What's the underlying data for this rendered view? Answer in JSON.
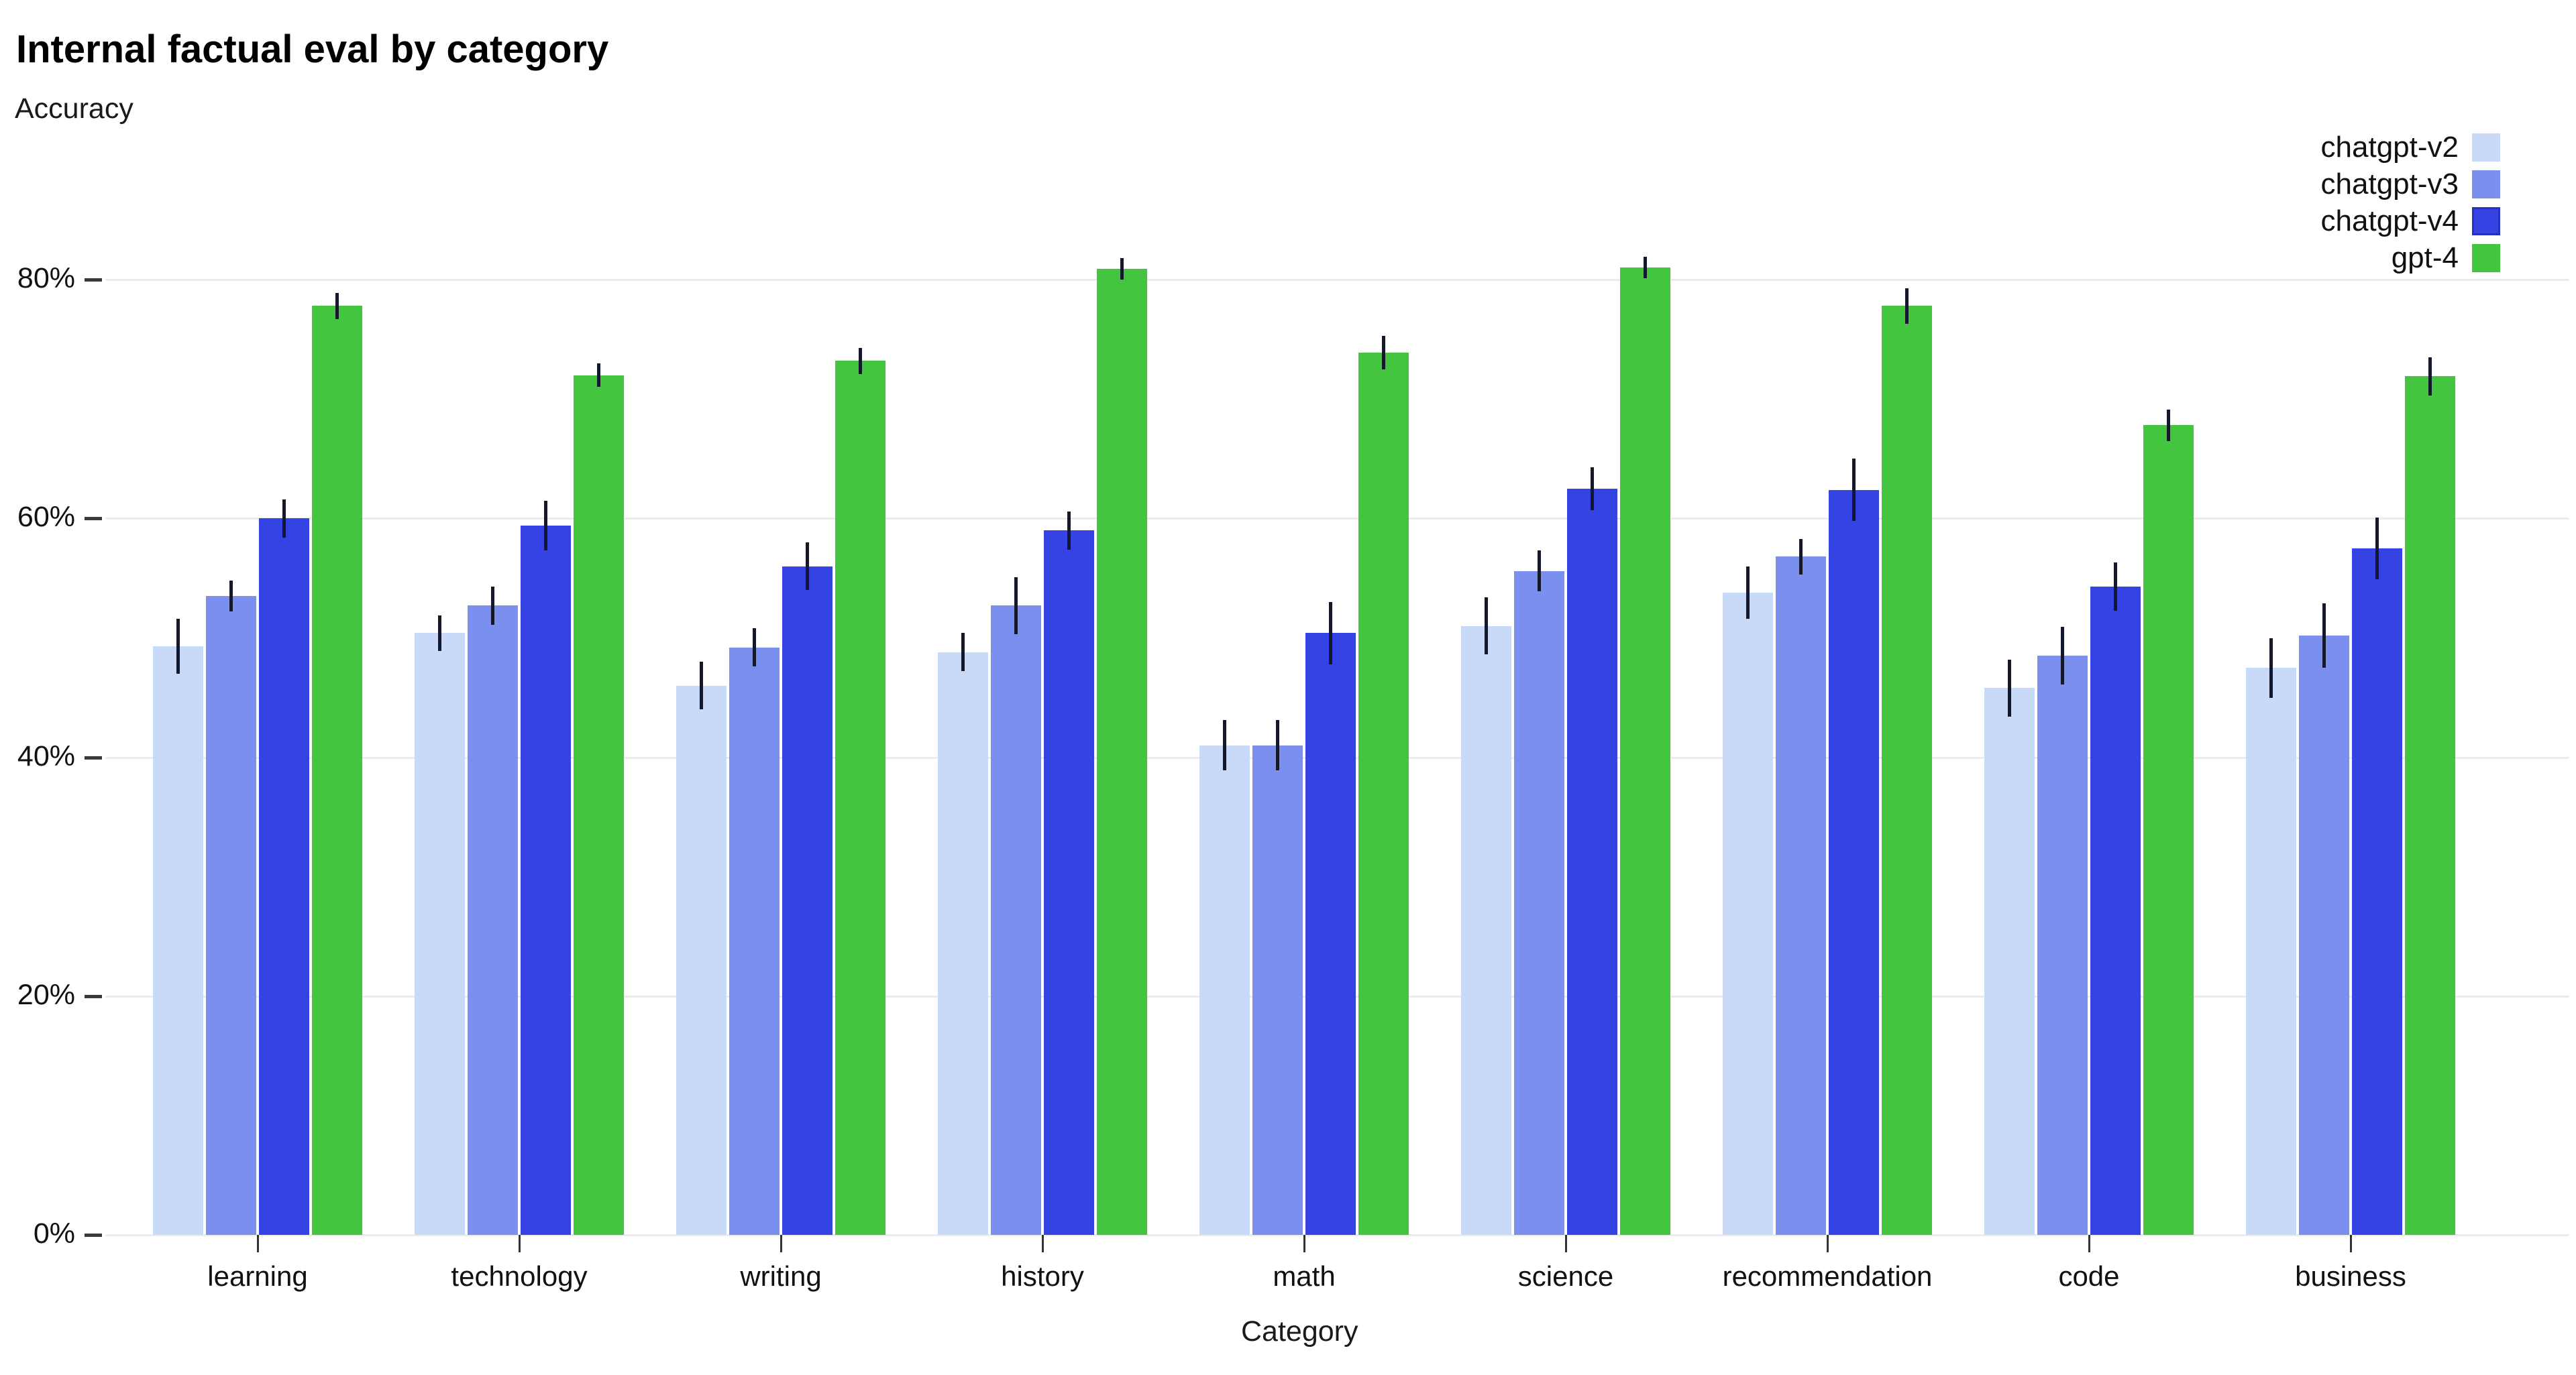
{
  "title": "Internal factual eval by category",
  "y_axis_title": "Accuracy",
  "x_axis_title": "Category",
  "legend": {
    "position": "top-right",
    "items": [
      {
        "label": "chatgpt-v2",
        "color": "#c9daf8"
      },
      {
        "label": "chatgpt-v3",
        "color": "#7b90ee"
      },
      {
        "label": "chatgpt-v4",
        "color": "#3543e2",
        "border_color": "#2531c4"
      },
      {
        "label": "gpt-4",
        "color": "#44c53f"
      }
    ]
  },
  "y_ticks": [
    {
      "pct": 0,
      "label": "0%"
    },
    {
      "pct": 20,
      "label": "20%"
    },
    {
      "pct": 40,
      "label": "40%"
    },
    {
      "pct": 60,
      "label": "60%"
    },
    {
      "pct": 80,
      "label": "80%"
    }
  ],
  "chart_data": {
    "type": "bar",
    "title": "Internal factual eval by category",
    "xlabel": "Category",
    "ylabel": "Accuracy",
    "ylim": [
      0,
      100
    ],
    "grid": true,
    "legend_position": "top-right",
    "error_bars": true,
    "categories": [
      "learning",
      "technology",
      "writing",
      "history",
      "math",
      "science",
      "recommendation",
      "code",
      "business"
    ],
    "series": [
      {
        "name": "chatgpt-v2",
        "color": "#c9daf8",
        "values": [
          49.3,
          50.4,
          46.0,
          48.8,
          41.0,
          51.0,
          53.8,
          45.8,
          47.5
        ],
        "errors": [
          2.3,
          1.5,
          2.0,
          1.6,
          2.1,
          2.4,
          2.2,
          2.4,
          2.5
        ]
      },
      {
        "name": "chatgpt-v3",
        "color": "#7b90ee",
        "values": [
          53.5,
          52.7,
          49.2,
          52.7,
          41.0,
          55.6,
          56.8,
          48.5,
          50.2
        ],
        "errors": [
          1.3,
          1.6,
          1.6,
          2.4,
          2.1,
          1.7,
          1.5,
          2.4,
          2.7
        ]
      },
      {
        "name": "chatgpt-v4",
        "color": "#3543e2",
        "values": [
          60.0,
          59.4,
          56.0,
          59.0,
          50.4,
          62.5,
          62.4,
          54.3,
          57.5
        ],
        "errors": [
          1.6,
          2.1,
          2.0,
          1.6,
          2.6,
          1.8,
          2.6,
          2.0,
          2.6
        ]
      },
      {
        "name": "gpt-4",
        "color": "#44c53f",
        "values": [
          77.8,
          72.0,
          73.2,
          80.9,
          73.9,
          81.0,
          77.8,
          67.8,
          71.9
        ],
        "errors": [
          1.1,
          1.0,
          1.1,
          0.9,
          1.4,
          0.9,
          1.5,
          1.3,
          1.6
        ]
      }
    ]
  }
}
